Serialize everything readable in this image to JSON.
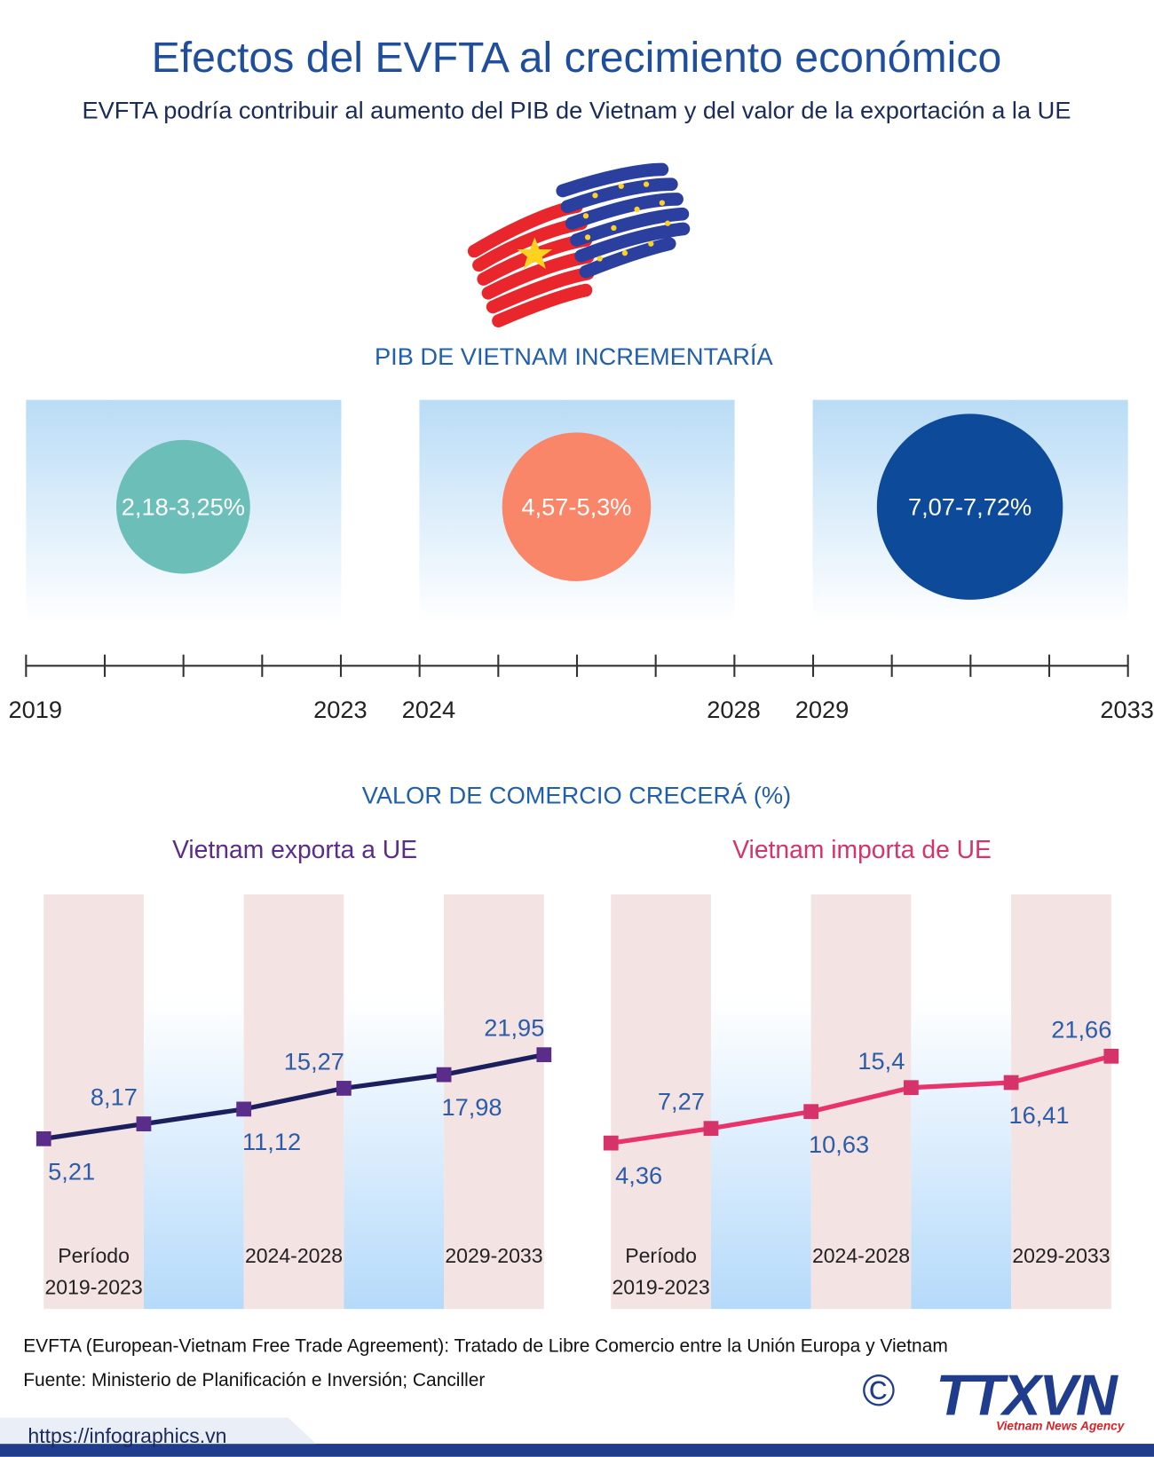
{
  "header": {
    "title": "Efectos del EVFTA al crecimiento económico",
    "subtitle": "EVFTA podría contribuir al aumento del PIB de Vietnam y del valor de la exportación a la UE"
  },
  "gdp": {
    "title": "PIB DE VIETNAM INCREMENTARÍA",
    "periods": [
      {
        "range": "2,18-3,25%",
        "start": "2019",
        "end": "2023",
        "color": "#6cbfb8"
      },
      {
        "range": "4,57-5,3%",
        "start": "2024",
        "end": "2028",
        "color": "#fa8669"
      },
      {
        "range": "7,07-7,72%",
        "start": "2029",
        "end": "2033",
        "color": "#0e4a9a"
      }
    ]
  },
  "trade_title": "VALOR DE COMERCIO CRECERÁ (%)",
  "chart_data": [
    {
      "type": "line",
      "title": "Vietnam exporta a UE",
      "title_color": "#5b2d8a",
      "line_color": "#1b1f5e",
      "marker_color": "#5b2d8a",
      "values": [
        5.21,
        8.17,
        11.12,
        15.27,
        17.98,
        21.95
      ],
      "value_labels": [
        "5,21",
        "8,17",
        "11,12",
        "15,27",
        "17,98",
        "21,95"
      ],
      "period_labels": [
        [
          "Período",
          "2019-2023"
        ],
        [
          "2024-2028"
        ],
        [
          "2029-2033"
        ]
      ]
    },
    {
      "type": "line",
      "title": "Vietnam importa de UE",
      "title_color": "#d6336a",
      "line_color": "#e8336b",
      "marker_color": "#d6336a",
      "values": [
        4.36,
        7.27,
        10.63,
        15.4,
        16.41,
        21.66
      ],
      "value_labels": [
        "4,36",
        "7,27",
        "10,63",
        "15,4",
        "16,41",
        "21,66"
      ],
      "period_labels": [
        [
          "Período",
          "2019-2023"
        ],
        [
          "2024-2028"
        ],
        [
          "2029-2033"
        ]
      ]
    }
  ],
  "footer": {
    "note": "EVFTA (European-Vietnam Free Trade Agreement): Tratado de Libre Comercio entre la Unión Europa y Vietnam",
    "source": "Fuente: Ministerio de Planificación e Inversión; Canciller",
    "url": "https://infographics.vn",
    "copyright": "©",
    "logo": "TTXVN",
    "agency": "Vietnam News Agency"
  }
}
